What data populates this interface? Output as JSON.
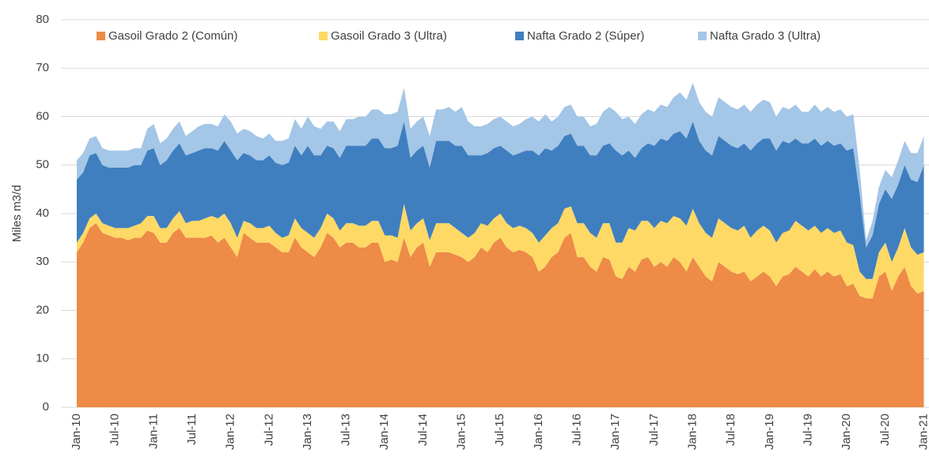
{
  "chart_data": {
    "type": "stacked_area",
    "y_label": "Miles m3/d",
    "legend": "top",
    "grid": true,
    "ylim": [
      0,
      80
    ],
    "yticks": [
      0,
      10,
      20,
      30,
      40,
      50,
      60,
      70,
      80
    ],
    "categories": [
      "Jan-10",
      null,
      null,
      null,
      null,
      null,
      "Jul-10",
      null,
      null,
      null,
      null,
      null,
      "Jan-11",
      null,
      null,
      null,
      null,
      null,
      "Jul-11",
      null,
      null,
      null,
      null,
      null,
      "Jan-12",
      null,
      null,
      null,
      null,
      null,
      "Jul-12",
      null,
      null,
      null,
      null,
      null,
      "Jan-13",
      null,
      null,
      null,
      null,
      null,
      "Jul-13",
      null,
      null,
      null,
      null,
      null,
      "Jan-14",
      null,
      null,
      null,
      null,
      null,
      "Jul-14",
      null,
      null,
      null,
      null,
      null,
      "Jan-15",
      null,
      null,
      null,
      null,
      null,
      "Jul-15",
      null,
      null,
      null,
      null,
      null,
      "Jan-16",
      null,
      null,
      null,
      null,
      null,
      "Jul-16",
      null,
      null,
      null,
      null,
      null,
      "Jan-17",
      null,
      null,
      null,
      null,
      null,
      "Jul-17",
      null,
      null,
      null,
      null,
      null,
      "Jan-18",
      null,
      null,
      null,
      null,
      null,
      "Jul-18",
      null,
      null,
      null,
      null,
      null,
      "Jan-19",
      null,
      null,
      null,
      null,
      null,
      "Jul-19",
      null,
      null,
      null,
      null,
      null,
      "Jan-20",
      null,
      null,
      null,
      null,
      null,
      "Jul-20",
      null,
      null,
      null,
      null,
      null,
      "Jan-21"
    ],
    "series": [
      {
        "name": "Gasoil Grado 2 (Común)",
        "color": "#ED8B47",
        "values": [
          32,
          34,
          37,
          38,
          36,
          35.5,
          35,
          35,
          34.5,
          35,
          35,
          36.5,
          36,
          34,
          34,
          36,
          37,
          35,
          35,
          35,
          35,
          35.5,
          34,
          35,
          33,
          31,
          36,
          35,
          34,
          34,
          34,
          33,
          32,
          32,
          35,
          33,
          32,
          31,
          33,
          36,
          35,
          33,
          34,
          34,
          33,
          33,
          34,
          34,
          30,
          30.5,
          30,
          35,
          31,
          33,
          34,
          29,
          32,
          32,
          32,
          31.5,
          31,
          30,
          31,
          33,
          32,
          34,
          35,
          33,
          32,
          32.5,
          32,
          31,
          28,
          29,
          31,
          32,
          35,
          36,
          31,
          31,
          29,
          28,
          31,
          30.5,
          27,
          26.5,
          29,
          28,
          30.5,
          31,
          29,
          30,
          29,
          31,
          30,
          28,
          31,
          29,
          27,
          26,
          30,
          29,
          28,
          27.5,
          28,
          26,
          27,
          28,
          27,
          25,
          27,
          27.5,
          29,
          28,
          27,
          28.5,
          27,
          28,
          27,
          27.5,
          25,
          25.5,
          23,
          22.5,
          22.5,
          27,
          28,
          24,
          27,
          29,
          25,
          23.5,
          24
        ]
      },
      {
        "name": "Gasoil Grado 3 (Ultra)",
        "color": "#FFD966",
        "values": [
          2,
          2,
          2,
          2,
          2,
          2,
          2,
          2,
          2.5,
          2.5,
          3,
          3,
          3.5,
          3,
          3,
          3,
          3.5,
          3,
          3.5,
          3.5,
          4,
          4,
          5,
          5,
          5,
          4,
          2.5,
          3,
          3,
          3,
          3.5,
          3,
          3,
          3.5,
          4,
          4,
          4,
          4,
          4,
          4,
          4,
          3.5,
          4,
          4,
          4.5,
          4.5,
          4.5,
          4.5,
          5.5,
          5,
          5,
          7,
          5.5,
          5,
          5,
          5.5,
          6,
          6,
          6,
          5.5,
          5,
          5,
          5,
          5,
          5.5,
          5,
          5,
          5,
          5,
          5,
          5,
          5,
          6,
          6.5,
          6,
          6,
          6,
          5.5,
          7,
          7,
          7,
          7,
          7,
          7.5,
          7,
          7.5,
          8,
          8.5,
          8,
          7.5,
          8,
          8.5,
          9,
          8.5,
          9,
          9.5,
          10,
          9,
          9,
          9,
          9,
          9,
          9,
          9,
          9.5,
          9,
          9.5,
          9.5,
          9.5,
          9,
          9,
          9,
          9.5,
          9.5,
          9.5,
          9,
          9,
          9,
          9,
          9,
          9,
          8,
          5,
          4,
          4,
          5,
          6,
          6,
          6,
          8,
          8,
          8,
          8
        ]
      },
      {
        "name": "Nafta Grado 2 (Súper)",
        "color": "#3F7FBF",
        "values": [
          13,
          12.5,
          13,
          12.5,
          12,
          12,
          12.5,
          12.5,
          12.5,
          12.5,
          12,
          13.5,
          14,
          13,
          14,
          14,
          14,
          14,
          14,
          14.5,
          14.5,
          14,
          14,
          15,
          15,
          16,
          14,
          14,
          14,
          14,
          14.5,
          14.5,
          15,
          15,
          15,
          15,
          18,
          17,
          15,
          14,
          14.5,
          15,
          16,
          16,
          16.5,
          16.5,
          17,
          17,
          18,
          18,
          19,
          17,
          15,
          15,
          15,
          15,
          17,
          17,
          17,
          17,
          18,
          17,
          16,
          14,
          15,
          14.5,
          14,
          15,
          15,
          15,
          16,
          17,
          18,
          18,
          16,
          16,
          15,
          15,
          16,
          16,
          16,
          17,
          16,
          16.5,
          19,
          18,
          16,
          15,
          15,
          16,
          17,
          17,
          17,
          17,
          18,
          18,
          18,
          17,
          17,
          17,
          17,
          17,
          17,
          17,
          17,
          18,
          18,
          18,
          19,
          19,
          19,
          18,
          17,
          17,
          18,
          18,
          18,
          18,
          18,
          18,
          19,
          20,
          16,
          6.5,
          9,
          10,
          11,
          13,
          13,
          13,
          14,
          15,
          18
        ]
      },
      {
        "name": "Nafta Grado 3 (Ultra)",
        "color": "#A4C6E7",
        "values": [
          4,
          4,
          3.5,
          3.5,
          3.5,
          3.5,
          3.5,
          3.5,
          3.5,
          3.5,
          3.5,
          4.5,
          5,
          4.5,
          4.5,
          4.5,
          4.5,
          4,
          4.5,
          5,
          5,
          5,
          5,
          5.5,
          6,
          5.5,
          5,
          5,
          5,
          4.5,
          4.5,
          4.5,
          5,
          5,
          5.5,
          5.5,
          6,
          6,
          5.5,
          5,
          5.5,
          5.5,
          5.5,
          5.5,
          6,
          6,
          6,
          6,
          7,
          7,
          7,
          7,
          6,
          6,
          6,
          6.5,
          6.5,
          6.5,
          7,
          7,
          8,
          7,
          6,
          6,
          6,
          6,
          6,
          6,
          6,
          6,
          6.5,
          7,
          7,
          7,
          6,
          6,
          6,
          6,
          6,
          6,
          6,
          6.5,
          7,
          7.5,
          8,
          7.5,
          7,
          7,
          7,
          7,
          7,
          7,
          7,
          7.5,
          8,
          8,
          8,
          8,
          8,
          8,
          8,
          8,
          8,
          8,
          8,
          8,
          8,
          8,
          7.5,
          7,
          7,
          7,
          7,
          6.5,
          6.5,
          7,
          7,
          7,
          7,
          7,
          7,
          7,
          5,
          1.5,
          3,
          3.5,
          4,
          4.5,
          5,
          5,
          5.5,
          6,
          6
        ]
      }
    ]
  }
}
